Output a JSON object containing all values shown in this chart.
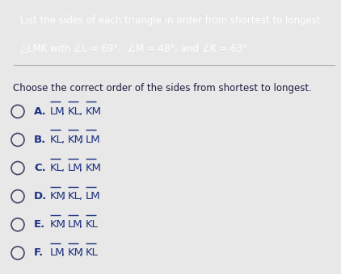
{
  "title_line1": "List the sides of each triangle in order from shortest to longest.",
  "title_line2": "△LMK with ∠L = 69°,  ∠M = 48°, and ∠K = 63°",
  "prompt": "Choose the correct order of the sides from shortest to longest.",
  "options": [
    {
      "label": "A.",
      "parts": [
        "LM",
        "KL",
        "KM"
      ]
    },
    {
      "label": "B.",
      "parts": [
        "KL",
        "KM",
        "LM"
      ]
    },
    {
      "label": "C.",
      "parts": [
        "KL",
        "LM",
        "KM"
      ]
    },
    {
      "label": "D.",
      "parts": [
        "KM",
        "KL",
        "LM"
      ]
    },
    {
      "label": "E.",
      "parts": [
        "KM",
        "LM",
        "KL"
      ]
    },
    {
      "label": "F.",
      "parts": [
        "LM",
        "KM",
        "KL"
      ]
    }
  ],
  "bg_top": "#1e2d6b",
  "bg_main": "#e8e8e8",
  "text_dark": "#1a1a3e",
  "text_blue": "#1a3080",
  "circle_color": "#444466",
  "title_fontsize": 8.5,
  "body_fontsize": 8.5,
  "option_fontsize": 9.5
}
